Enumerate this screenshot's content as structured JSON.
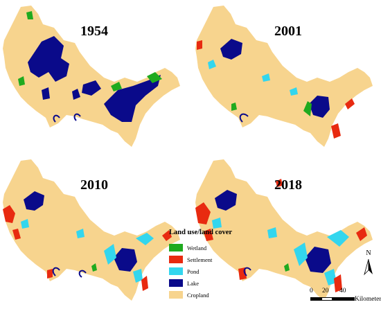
{
  "panels": [
    {
      "year": "1954"
    },
    {
      "year": "2001"
    },
    {
      "year": "2010"
    },
    {
      "year": "2018"
    }
  ],
  "legend": {
    "title": "Land use/land cover",
    "items": [
      {
        "label": "Wetland",
        "color": "#1faa1f"
      },
      {
        "label": "Settlement",
        "color": "#e82a10"
      },
      {
        "label": "Pond",
        "color": "#33d6ee"
      },
      {
        "label": "Lake",
        "color": "#0a0a8a"
      },
      {
        "label": "Cropland",
        "color": "#f7d48e"
      }
    ]
  },
  "north_arrow": {
    "label": "N"
  },
  "scale_bar": {
    "ticks": [
      "0",
      "20",
      "40"
    ],
    "unit": "Kilometers"
  }
}
